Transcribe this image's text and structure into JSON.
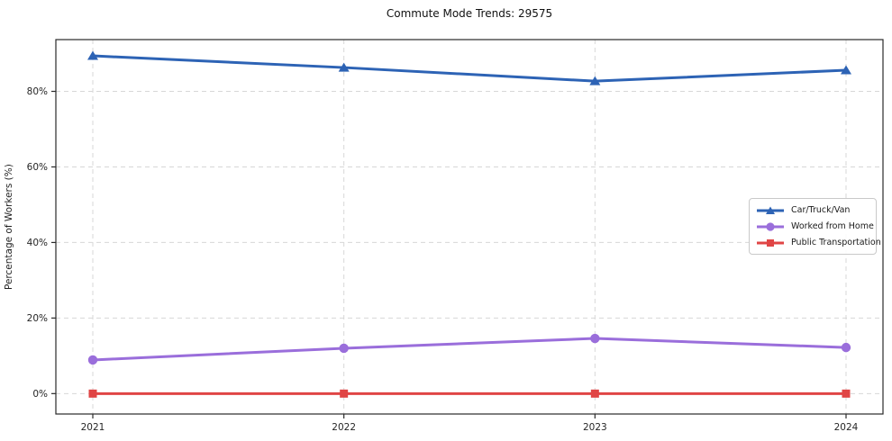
{
  "chart_data": {
    "type": "line",
    "title": "Commute Mode Trends: 29575",
    "ylabel": "Percentage of Workers (%)",
    "xlabel": "",
    "x": [
      2021,
      2022,
      2023,
      2024
    ],
    "x_tick_labels": [
      "2021",
      "2022",
      "2023",
      "2024"
    ],
    "series": [
      {
        "name": "Car/Truck/Van",
        "values": [
          89.4,
          86.3,
          82.7,
          85.6
        ],
        "color": "#2d63b5",
        "marker": "triangle"
      },
      {
        "name": "Worked from Home",
        "values": [
          8.9,
          12.0,
          14.6,
          12.2
        ],
        "color": "#9a6edb",
        "marker": "circle"
      },
      {
        "name": "Public Transportation",
        "values": [
          0.0,
          0.0,
          0.0,
          0.0
        ],
        "color": "#e04545",
        "marker": "square"
      }
    ],
    "yticks": [
      0,
      20,
      40,
      60,
      80
    ],
    "ytick_labels": [
      "0%",
      "20%",
      "40%",
      "60%",
      "80%"
    ],
    "ylim": [
      -5.4,
      93.7
    ],
    "grid": true,
    "grid_style": "dashed",
    "grid_color": "#d7d7d7",
    "axes_border_color": "#2a2a2a",
    "legend_position": "center right"
  }
}
